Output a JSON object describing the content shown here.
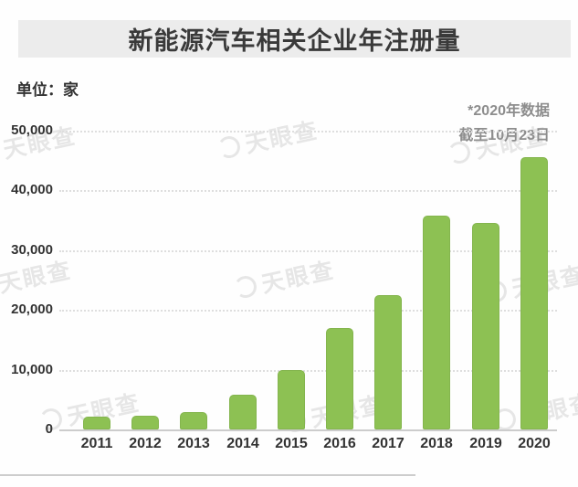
{
  "title": "新能源汽车相关企业年注册量",
  "unit_label": "单位：家",
  "annotation": {
    "line1": "*2020年数据",
    "line2": "截至10月23日"
  },
  "watermark": {
    "text": "天眼查"
  },
  "colors": {
    "bar": "#8dc153",
    "banner_bg": "#ececec",
    "title_text": "#3a3a3a",
    "axis_text": "#333333",
    "annotation_text": "#8d8d8d",
    "gridline": "#dedede",
    "baseline": "#cccccc"
  },
  "chart_data": {
    "type": "bar",
    "title": "新能源汽车相关企业年注册量",
    "unit": "家",
    "categories": [
      "2011",
      "2012",
      "2013",
      "2014",
      "2015",
      "2016",
      "2017",
      "2018",
      "2019",
      "2020"
    ],
    "values": [
      2100,
      2300,
      2900,
      5800,
      9900,
      17000,
      22500,
      35800,
      34600,
      45500
    ],
    "series_note": "2020年数据截至10月23日",
    "y_ticks": [
      0,
      10000,
      20000,
      30000,
      40000,
      50000
    ],
    "y_tick_labels": [
      "0",
      "10,000",
      "20,000",
      "30,000",
      "40,000",
      "50,000"
    ],
    "ylim": [
      0,
      50000
    ],
    "xlabel": "",
    "ylabel": "单位：家",
    "grid": "horizontal-dotted",
    "legend": "none",
    "bar_color": "#8dc153"
  }
}
